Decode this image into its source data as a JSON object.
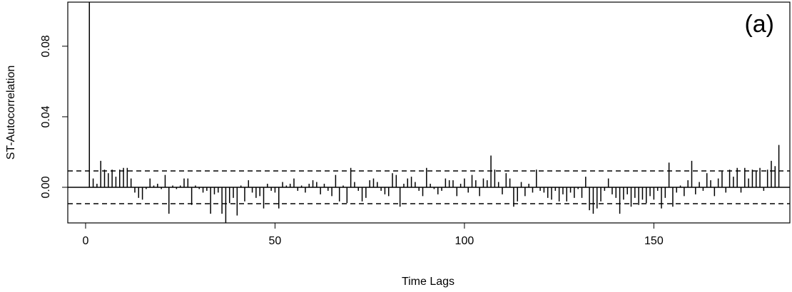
{
  "chart_data": {
    "type": "bar",
    "annotation": "(a)",
    "x_label": "Time Lags",
    "y_label": "ST-Autocorrelation",
    "xlim": [
      -4.7,
      185.9
    ],
    "ylim": [
      -0.0202,
      0.105
    ],
    "xticks": [
      0,
      50,
      100,
      150
    ],
    "yticks": [
      {
        "value": 0,
        "label": "0.00"
      },
      {
        "value": 0.04,
        "label": "0.04"
      },
      {
        "value": 0.08,
        "label": "0.08"
      }
    ],
    "conf_bounds": [
      -0.0093,
      0.0093
    ],
    "color": "#000000",
    "x": [
      1,
      2,
      3,
      4,
      5,
      6,
      7,
      8,
      9,
      10,
      11,
      12,
      13,
      14,
      15,
      16,
      17,
      18,
      19,
      20,
      21,
      22,
      23,
      24,
      25,
      26,
      27,
      28,
      29,
      30,
      31,
      32,
      33,
      34,
      35,
      36,
      37,
      38,
      39,
      40,
      41,
      42,
      43,
      44,
      45,
      46,
      47,
      48,
      49,
      50,
      51,
      52,
      53,
      54,
      55,
      56,
      57,
      58,
      59,
      60,
      61,
      62,
      63,
      64,
      65,
      66,
      67,
      68,
      69,
      70,
      71,
      72,
      73,
      74,
      75,
      76,
      77,
      78,
      79,
      80,
      81,
      82,
      83,
      84,
      85,
      86,
      87,
      88,
      89,
      90,
      91,
      92,
      93,
      94,
      95,
      96,
      97,
      98,
      99,
      100,
      101,
      102,
      103,
      104,
      105,
      106,
      107,
      108,
      109,
      110,
      111,
      112,
      113,
      114,
      115,
      116,
      117,
      118,
      119,
      120,
      121,
      122,
      123,
      124,
      125,
      126,
      127,
      128,
      129,
      130,
      131,
      132,
      133,
      134,
      135,
      136,
      137,
      138,
      139,
      140,
      141,
      142,
      143,
      144,
      145,
      146,
      147,
      148,
      149,
      150,
      151,
      152,
      153,
      154,
      155,
      156,
      157,
      158,
      159,
      160,
      161,
      162,
      163,
      164,
      165,
      166,
      167,
      168,
      169,
      170,
      171,
      172,
      173,
      174,
      175,
      176,
      177,
      178,
      179,
      180,
      181,
      182,
      183
    ],
    "values": [
      0.11,
      0.005,
      0.002,
      0.015,
      0.01,
      0.008,
      0.01,
      0.006,
      0.01,
      0.011,
      0.011,
      0.005,
      -0.003,
      -0.006,
      -0.007,
      -0.001,
      0.005,
      0.001,
      0.002,
      -0.001,
      0.007,
      -0.015,
      0.001,
      -0.001,
      0.001,
      0.005,
      0.005,
      -0.01,
      0.001,
      -0.001,
      -0.003,
      -0.002,
      -0.015,
      -0.004,
      -0.003,
      -0.015,
      -0.021,
      -0.009,
      -0.006,
      -0.016,
      0.001,
      -0.008,
      0.004,
      -0.003,
      -0.006,
      -0.005,
      -0.012,
      0.002,
      -0.002,
      -0.003,
      -0.012,
      0.003,
      0.001,
      0.002,
      0.005,
      -0.002,
      0.001,
      -0.003,
      0.002,
      0.004,
      0.003,
      -0.004,
      0.002,
      -0.002,
      -0.005,
      0.007,
      -0.008,
      0.001,
      -0.009,
      0.011,
      0.003,
      -0.002,
      -0.008,
      -0.006,
      0.004,
      0.005,
      0.003,
      -0.002,
      -0.004,
      -0.005,
      0.008,
      0.007,
      -0.011,
      0.002,
      0.005,
      0.006,
      0.003,
      -0.002,
      -0.005,
      0.011,
      0.002,
      -0.001,
      -0.004,
      -0.002,
      0.005,
      0.004,
      0.004,
      -0.005,
      0.002,
      0.005,
      -0.003,
      0.007,
      0.004,
      -0.005,
      0.005,
      0.004,
      0.018,
      0.01,
      0.003,
      -0.004,
      0.008,
      0.005,
      -0.011,
      -0.008,
      0.003,
      -0.005,
      0.002,
      -0.003,
      0.01,
      -0.002,
      -0.003,
      -0.006,
      -0.007,
      -0.002,
      -0.008,
      -0.004,
      -0.008,
      -0.003,
      -0.006,
      -0.001,
      -0.006,
      0.006,
      -0.013,
      -0.015,
      -0.012,
      -0.008,
      -0.002,
      0.005,
      -0.004,
      -0.006,
      -0.015,
      -0.007,
      -0.004,
      -0.011,
      -0.006,
      -0.01,
      -0.007,
      -0.009,
      -0.005,
      -0.007,
      -0.002,
      -0.012,
      -0.006,
      0.014,
      -0.011,
      -0.003,
      0.001,
      -0.005,
      0.004,
      0.015,
      -0.004,
      0.003,
      -0.002,
      0.008,
      0.004,
      -0.005,
      0.005,
      0.009,
      -0.003,
      0.01,
      0.006,
      0.011,
      -0.003,
      0.011,
      0.005,
      0.01,
      0.009,
      0.011,
      -0.002,
      0.01,
      0.015,
      0.012,
      0.024
    ]
  }
}
